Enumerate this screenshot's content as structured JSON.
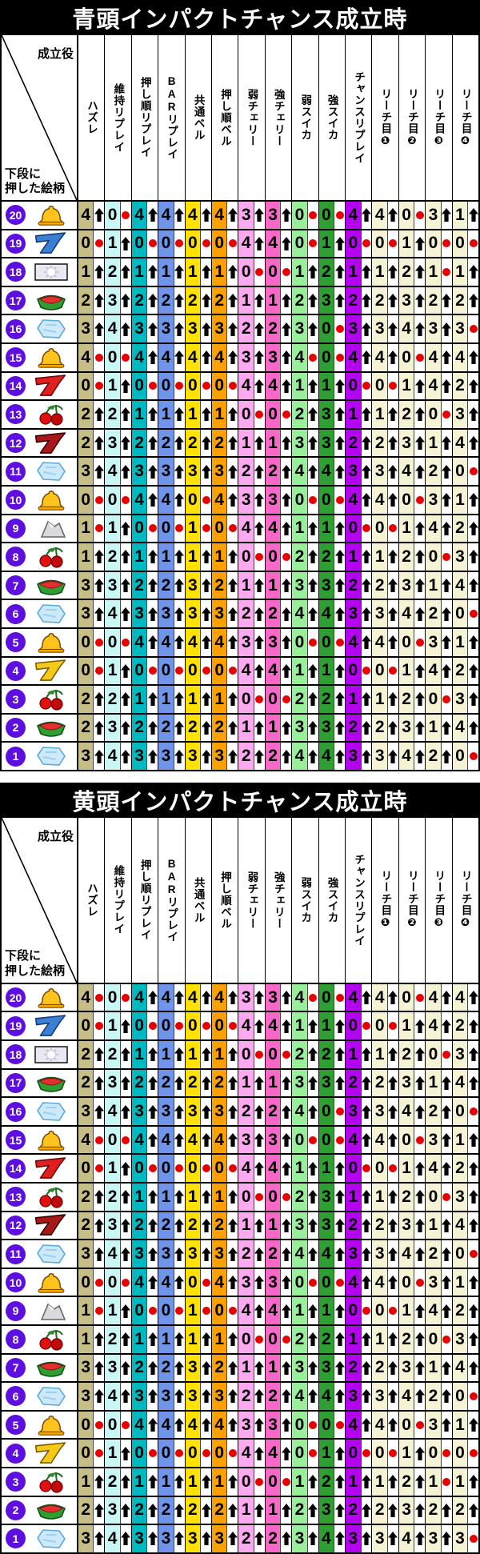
{
  "corner": {
    "top_label": "成立役",
    "bottom_label_line1": "下段に",
    "bottom_label_line2": "押した絵柄"
  },
  "columns": [
    "ハズレ",
    "維持リプレイ",
    "押し順リプレイ",
    "BARリプレイ",
    "共通ベル",
    "押し順ベル",
    "弱チェリー",
    "強チェリー",
    "弱スイカ",
    "強スイカ",
    "チャンスリプレイ",
    "リーチ目❶",
    "リーチ目❷",
    "リーチ目❸",
    "リーチ目❹"
  ],
  "column_colors": [
    "#c6bd87",
    "#c9f7f5",
    "#00b9c0",
    "#7094e8",
    "#ffe200",
    "#faa000",
    "#fbaaf0",
    "#f967c9",
    "#99ef99",
    "#2f9e33",
    "#b303f0",
    "#f6f3d4",
    "#f6f3d4",
    "#f6f3d4",
    "#f6f3d4"
  ],
  "legend": {
    "u": "up-arrow",
    "d": "red-dot"
  },
  "arrow_color": "#000000",
  "dot_color": "#e80000",
  "badge_color": "#5d0fe0",
  "row_icons": [
    "bell-icon",
    "blue-seven-icon",
    "white-flash-icon",
    "watermelon-icon",
    "ice-icon",
    "bell-icon",
    "red-seven-icon",
    "cherry-icon",
    "dark-seven-icon",
    "ice-icon",
    "bell-icon",
    "mountain-icon",
    "cherry-icon",
    "watermelon-icon",
    "ice-icon",
    "bell-icon",
    "yellow-seven-icon",
    "cherry-icon",
    "watermelon-icon",
    "ice-icon"
  ],
  "tables": [
    {
      "title": "青頭インパクトチャンス成立時",
      "rows": [
        {
          "num": "20",
          "cells": [
            "4u",
            "0d",
            "4u",
            "4u",
            "4u",
            "4u",
            "3u",
            "3u",
            "0d",
            "0d",
            "4u",
            "4u",
            "0d",
            "3u",
            "1u"
          ]
        },
        {
          "num": "19",
          "cells": [
            "0d",
            "1u",
            "0d",
            "0d",
            "0d",
            "0d",
            "4u",
            "4u",
            "0d",
            "1u",
            "0d",
            "0d",
            "1u",
            "0d",
            "0d"
          ]
        },
        {
          "num": "18",
          "cells": [
            "1u",
            "2u",
            "1u",
            "1u",
            "1u",
            "1u",
            "0d",
            "0d",
            "1u",
            "2u",
            "1u",
            "1u",
            "2u",
            "1d",
            "1u"
          ]
        },
        {
          "num": "17",
          "cells": [
            "2u",
            "3u",
            "2u",
            "2u",
            "2u",
            "2u",
            "1u",
            "1u",
            "2u",
            "3u",
            "2u",
            "2u",
            "3u",
            "2u",
            "2u"
          ]
        },
        {
          "num": "16",
          "cells": [
            "3u",
            "4u",
            "3u",
            "3u",
            "3u",
            "3u",
            "2u",
            "2u",
            "3u",
            "0d",
            "3u",
            "3u",
            "4u",
            "3u",
            "3d"
          ]
        },
        {
          "num": "15",
          "cells": [
            "4d",
            "0d",
            "4u",
            "4u",
            "4u",
            "4u",
            "3u",
            "3u",
            "4d",
            "0d",
            "4u",
            "4u",
            "0d",
            "4u",
            "4u"
          ]
        },
        {
          "num": "14",
          "cells": [
            "0d",
            "1u",
            "0d",
            "0d",
            "0d",
            "0d",
            "4u",
            "4u",
            "1u",
            "1u",
            "0d",
            "0d",
            "1u",
            "4u",
            "2u"
          ]
        },
        {
          "num": "13",
          "cells": [
            "2u",
            "2u",
            "1u",
            "1u",
            "1u",
            "1u",
            "0d",
            "0d",
            "2u",
            "3u",
            "1u",
            "1u",
            "2u",
            "0d",
            "3u"
          ]
        },
        {
          "num": "12",
          "cells": [
            "2u",
            "3u",
            "2u",
            "2u",
            "2u",
            "2u",
            "1u",
            "1u",
            "3u",
            "3u",
            "2u",
            "2u",
            "3u",
            "1u",
            "4u"
          ]
        },
        {
          "num": "11",
          "cells": [
            "3u",
            "4u",
            "3u",
            "3u",
            "3u",
            "3u",
            "2u",
            "2u",
            "4u",
            "4u",
            "3u",
            "3u",
            "4u",
            "2u",
            "0d"
          ]
        },
        {
          "num": "10",
          "cells": [
            "0d",
            "0d",
            "4u",
            "4u",
            "0d",
            "4u",
            "3u",
            "3u",
            "0d",
            "0d",
            "4u",
            "4u",
            "0d",
            "3u",
            "1u"
          ]
        },
        {
          "num": "9",
          "cells": [
            "1d",
            "1u",
            "0d",
            "0d",
            "1d",
            "0d",
            "4u",
            "4u",
            "1u",
            "1u",
            "0d",
            "0d",
            "1u",
            "4u",
            "2u"
          ]
        },
        {
          "num": "8",
          "cells": [
            "1u",
            "2u",
            "1u",
            "1u",
            "1u",
            "1u",
            "0d",
            "0d",
            "2u",
            "2u",
            "1u",
            "1u",
            "2u",
            "0d",
            "3u"
          ]
        },
        {
          "num": "7",
          "cells": [
            "3u",
            "3u",
            "2u",
            "2u",
            "3u",
            "2u",
            "1u",
            "1u",
            "3u",
            "3u",
            "2u",
            "2u",
            "3u",
            "1u",
            "4u"
          ]
        },
        {
          "num": "6",
          "cells": [
            "3u",
            "4u",
            "3u",
            "3u",
            "3u",
            "3u",
            "2u",
            "2u",
            "4u",
            "4u",
            "3u",
            "3u",
            "4u",
            "2u",
            "0d"
          ]
        },
        {
          "num": "5",
          "cells": [
            "0d",
            "0d",
            "4u",
            "4u",
            "4u",
            "4u",
            "3u",
            "3u",
            "0d",
            "0d",
            "4u",
            "4u",
            "0d",
            "3u",
            "1u"
          ]
        },
        {
          "num": "4",
          "cells": [
            "0d",
            "1u",
            "0d",
            "0d",
            "0d",
            "0d",
            "4u",
            "4u",
            "1u",
            "1u",
            "0d",
            "0d",
            "1u",
            "4u",
            "2u"
          ]
        },
        {
          "num": "3",
          "cells": [
            "2u",
            "2u",
            "1u",
            "1u",
            "1u",
            "1u",
            "0d",
            "0d",
            "2u",
            "2u",
            "1u",
            "1u",
            "2u",
            "0d",
            "3u"
          ]
        },
        {
          "num": "2",
          "cells": [
            "2u",
            "3u",
            "2u",
            "2u",
            "2u",
            "2u",
            "1u",
            "1u",
            "3u",
            "3u",
            "2u",
            "2u",
            "3u",
            "1u",
            "4u"
          ]
        },
        {
          "num": "1",
          "cells": [
            "3u",
            "4u",
            "3u",
            "3u",
            "3u",
            "3u",
            "2u",
            "2u",
            "4u",
            "4u",
            "3u",
            "3u",
            "4u",
            "2u",
            "0d"
          ]
        }
      ]
    },
    {
      "title": "黄頭インパクトチャンス成立時",
      "rows": [
        {
          "num": "20",
          "cells": [
            "4d",
            "0d",
            "4u",
            "4u",
            "4u",
            "4u",
            "3u",
            "3u",
            "4d",
            "0d",
            "4u",
            "4u",
            "0d",
            "4u",
            "4u"
          ]
        },
        {
          "num": "19",
          "cells": [
            "0d",
            "1u",
            "0d",
            "0d",
            "0d",
            "0d",
            "4u",
            "4u",
            "1u",
            "1u",
            "0d",
            "0d",
            "1u",
            "4u",
            "2u"
          ]
        },
        {
          "num": "18",
          "cells": [
            "2u",
            "2u",
            "1u",
            "1u",
            "1u",
            "1u",
            "0d",
            "0d",
            "2u",
            "2u",
            "1u",
            "1u",
            "2u",
            "0d",
            "3u"
          ]
        },
        {
          "num": "17",
          "cells": [
            "2u",
            "3u",
            "2u",
            "2u",
            "2u",
            "2u",
            "1u",
            "1u",
            "3u",
            "3u",
            "2u",
            "2u",
            "3u",
            "1u",
            "4u"
          ]
        },
        {
          "num": "16",
          "cells": [
            "3u",
            "4u",
            "3u",
            "3u",
            "3u",
            "3u",
            "2u",
            "2u",
            "4u",
            "0d",
            "3u",
            "3u",
            "4u",
            "2u",
            "0d"
          ]
        },
        {
          "num": "15",
          "cells": [
            "4d",
            "0d",
            "4u",
            "4u",
            "4u",
            "4u",
            "3u",
            "3u",
            "0d",
            "0d",
            "4u",
            "4u",
            "0d",
            "3u",
            "1u"
          ]
        },
        {
          "num": "14",
          "cells": [
            "0d",
            "1u",
            "0d",
            "0d",
            "0d",
            "0d",
            "4u",
            "4u",
            "1u",
            "1u",
            "0d",
            "0d",
            "1u",
            "4u",
            "2u"
          ]
        },
        {
          "num": "13",
          "cells": [
            "2u",
            "2u",
            "1u",
            "1u",
            "1u",
            "1u",
            "0d",
            "0d",
            "2u",
            "3u",
            "1u",
            "1u",
            "2u",
            "0d",
            "3u"
          ]
        },
        {
          "num": "12",
          "cells": [
            "2u",
            "3u",
            "2u",
            "2u",
            "2u",
            "2u",
            "1u",
            "1u",
            "3u",
            "3u",
            "2u",
            "2u",
            "3u",
            "1u",
            "4u"
          ]
        },
        {
          "num": "11",
          "cells": [
            "3u",
            "4u",
            "3u",
            "3u",
            "3u",
            "3u",
            "2u",
            "2u",
            "4u",
            "4u",
            "3u",
            "3u",
            "4u",
            "2u",
            "0d"
          ]
        },
        {
          "num": "10",
          "cells": [
            "0d",
            "0d",
            "4u",
            "4u",
            "0d",
            "4u",
            "3u",
            "3u",
            "0d",
            "0d",
            "4u",
            "4u",
            "0d",
            "3u",
            "1u"
          ]
        },
        {
          "num": "9",
          "cells": [
            "1d",
            "1u",
            "0d",
            "0d",
            "1d",
            "0d",
            "4u",
            "4u",
            "1u",
            "1u",
            "0d",
            "0d",
            "1u",
            "4u",
            "2u"
          ]
        },
        {
          "num": "8",
          "cells": [
            "1u",
            "2u",
            "1u",
            "1u",
            "1u",
            "1u",
            "0d",
            "0d",
            "2u",
            "2u",
            "1u",
            "1u",
            "2u",
            "0d",
            "3u"
          ]
        },
        {
          "num": "7",
          "cells": [
            "3u",
            "3u",
            "2u",
            "2u",
            "3u",
            "2u",
            "1u",
            "1u",
            "3u",
            "3u",
            "2u",
            "2u",
            "3u",
            "1u",
            "4u"
          ]
        },
        {
          "num": "6",
          "cells": [
            "3u",
            "4u",
            "3u",
            "3u",
            "3u",
            "3u",
            "2u",
            "2u",
            "4u",
            "4u",
            "3u",
            "3u",
            "4u",
            "2u",
            "0d"
          ]
        },
        {
          "num": "5",
          "cells": [
            "0d",
            "0d",
            "4u",
            "4u",
            "4u",
            "4u",
            "3u",
            "3u",
            "0d",
            "0d",
            "4u",
            "4u",
            "0d",
            "3u",
            "1u"
          ]
        },
        {
          "num": "4",
          "cells": [
            "0d",
            "1u",
            "0d",
            "0d",
            "0d",
            "0d",
            "4u",
            "4u",
            "0d",
            "1u",
            "0d",
            "0d",
            "1u",
            "0d",
            "0d"
          ]
        },
        {
          "num": "3",
          "cells": [
            "1u",
            "2u",
            "1u",
            "1u",
            "1u",
            "1u",
            "0d",
            "0d",
            "1u",
            "2u",
            "1u",
            "1u",
            "2u",
            "1d",
            "1u"
          ]
        },
        {
          "num": "2",
          "cells": [
            "2u",
            "3u",
            "2u",
            "2u",
            "2u",
            "2u",
            "1u",
            "1u",
            "2u",
            "3u",
            "2u",
            "2u",
            "3u",
            "2u",
            "2u"
          ]
        },
        {
          "num": "1",
          "cells": [
            "3u",
            "4u",
            "3u",
            "3u",
            "3u",
            "3u",
            "2u",
            "2u",
            "3u",
            "4u",
            "3u",
            "3u",
            "4u",
            "3u",
            "3d"
          ]
        }
      ]
    }
  ]
}
